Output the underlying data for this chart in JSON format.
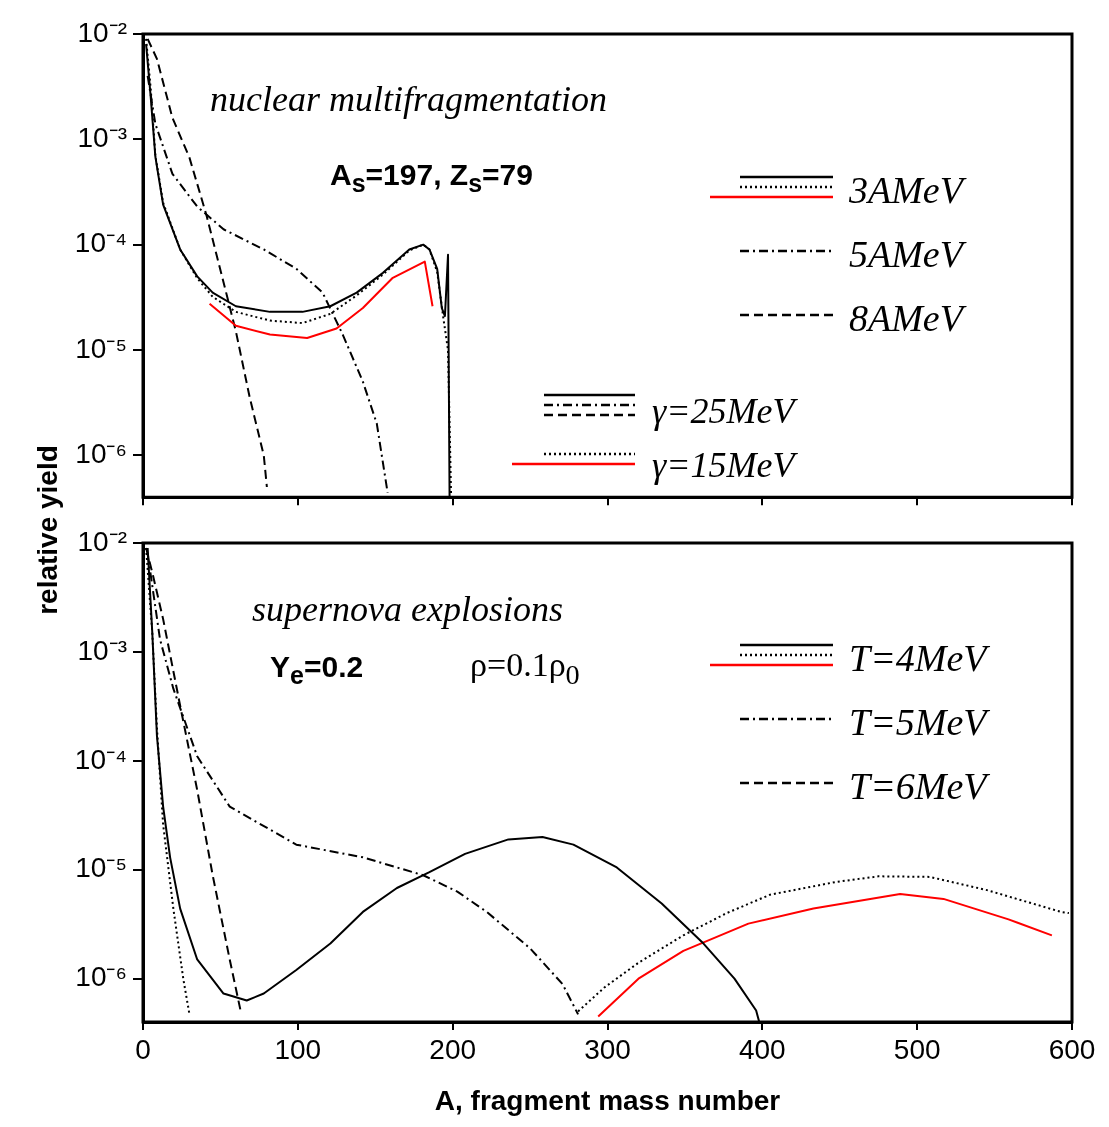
{
  "chart_data": [
    {
      "type": "line",
      "ylabel": "relative yield",
      "log": "y",
      "marker": "none",
      "legend": "top right",
      "tick_labels": "y",
      "xlim": [
        0,
        600
      ],
      "xticks": [
        0,
        100,
        200,
        300,
        400,
        500,
        600
      ],
      "ylim": [
        4e-07,
        0.01
      ],
      "yticks": [
        {
          "value": 0.01,
          "label": "10⁻²"
        },
        {
          "value": 0.001,
          "label": "10⁻³"
        },
        {
          "value": 0.0001,
          "label": "10⁻⁴"
        },
        {
          "value": 1e-05,
          "label": "10⁻⁵"
        },
        {
          "value": 1e-06,
          "label": "10⁻⁶"
        }
      ],
      "annotations": [
        "nuclear multifragmentation",
        "A$_{s}$=197, Z$_{s}$=79",
        "γ=25MeV",
        "γ=15MeV"
      ],
      "series": [
        {
          "name": "3AMeV",
          "color": "#000000",
          "line_style": "solid",
          "x": [
            2,
            5,
            8,
            13,
            24,
            35,
            45,
            60,
            82,
            103,
            121,
            138,
            155,
            172,
            181,
            185,
            190,
            193,
            195,
            197,
            198
          ],
          "values": [
            0.008,
            0.0025,
            0.00068,
            0.00024,
            9e-05,
            5e-05,
            3.5e-05,
            2.6e-05,
            2.3e-05,
            2.3e-05,
            2.6e-05,
            3.5e-05,
            5.4e-05,
            9e-05,
            0.0001,
            9e-05,
            5.9e-05,
            2.5e-05,
            2.1e-05,
            8e-05,
            4e-07
          ]
        },
        {
          "color": "#000000",
          "line_style": "dotted",
          "x": [
            2,
            5,
            8,
            13,
            24,
            35,
            45,
            60,
            82,
            103,
            121,
            138,
            155,
            172,
            181,
            185,
            190,
            194,
            197,
            199
          ],
          "values": [
            0.009,
            0.003,
            0.0007,
            0.00025,
            9e-05,
            4.8e-05,
            3.2e-05,
            2.3e-05,
            1.9e-05,
            1.8e-05,
            2.2e-05,
            3.3e-05,
            5.2e-05,
            8.8e-05,
            0.0001,
            9e-05,
            5.5e-05,
            2e-05,
            1e-05,
            4e-07
          ]
        },
        {
          "color": "#ff0000",
          "line_style": "solid",
          "x": [
            43,
            60,
            82,
            106,
            125,
            142,
            161,
            182,
            187
          ],
          "values": [
            2.75e-05,
            1.7e-05,
            1.4e-05,
            1.3e-05,
            1.6e-05,
            2.5e-05,
            4.8e-05,
            6.9e-05,
            2.6e-05
          ]
        },
        {
          "name": "5AMeV",
          "color": "#000000",
          "line_style": "dashdot",
          "x": [
            3,
            8,
            19,
            35,
            52,
            78,
            99,
            116,
            129,
            142,
            151,
            158
          ],
          "values": [
            0.004,
            0.0014,
            0.00047,
            0.00023,
            0.00014,
            9e-05,
            5.9e-05,
            3.5e-05,
            1.4e-05,
            5e-06,
            2e-06,
            4.4e-07
          ]
        },
        {
          "name": "8AMeV",
          "color": "#000000",
          "line_style": "dashed",
          "x": [
            3,
            9,
            19,
            30,
            41,
            52,
            60,
            69,
            78,
            80
          ],
          "values": [
            0.009,
            0.0058,
            0.0016,
            0.00067,
            0.00019,
            4.4e-05,
            1.5e-05,
            3.5e-06,
            1e-06,
            5e-07
          ]
        }
      ]
    },
    {
      "type": "line",
      "xlabel": "A, fragment mass number",
      "log": "y",
      "marker": "none",
      "legend": "top right",
      "xlim": [
        0,
        600
      ],
      "xticks": [
        0,
        100,
        200,
        300,
        400,
        500,
        600
      ],
      "ylim": [
        4e-07,
        0.01
      ],
      "yticks": [
        {
          "value": 0.01,
          "label": "10⁻²"
        },
        {
          "value": 0.001,
          "label": "10⁻³"
        },
        {
          "value": 0.0001,
          "label": "10⁻⁴"
        },
        {
          "value": 1e-05,
          "label": "10⁻⁵"
        },
        {
          "value": 1e-06,
          "label": "10⁻⁶"
        }
      ],
      "annotations": [
        "supernova explosions",
        "Y$_{e}$=0.2",
        "ρ=0.1ρ$_{0}$"
      ],
      "series": [
        {
          "name": "T=4MeV",
          "color": "#000000",
          "line_style": "solid",
          "x": [
            3,
            6,
            9,
            13,
            17.5,
            24,
            35,
            52,
            67,
            78,
            99,
            121,
            142,
            164,
            185,
            208,
            236,
            258,
            278,
            306,
            335,
            362,
            382,
            396,
            398
          ],
          "values": [
            0.009,
            0.0015,
            0.00017,
            3.8e-05,
            1.3e-05,
            4.4e-06,
            1.5e-06,
            7.3e-07,
            6.3e-07,
            7.3e-07,
            1.2e-06,
            2.1e-06,
            4.1e-06,
            6.8e-06,
            9.5e-06,
            1.4e-05,
            1.9e-05,
            2e-05,
            1.7e-05,
            1.05e-05,
            4.9e-06,
            2.1e-06,
            1e-06,
            5.1e-07,
            4e-07
          ]
        },
        {
          "color": "#000000",
          "line_style": "dotted",
          "x": [
            2,
            6,
            9,
            13,
            19.6,
            26,
            30,
            150,
            281,
            298,
            320,
            349,
            377,
            405,
            447,
            475,
            508,
            545,
            593,
            598
          ],
          "values": [
            0.009,
            0.0015,
            0.0002,
            2.6e-05,
            4.4e-06,
            1e-06,
            4.7e-07,
            null,
            5e-07,
            8.3e-07,
            1.4e-06,
            2.5e-06,
            4e-06,
            5.9e-06,
            7.7e-06,
            8.7e-06,
            8.6e-06,
            6.5e-06,
            4.1e-06,
            4e-06
          ]
        },
        {
          "color": "#ff0000",
          "line_style": "solid",
          "x": [
            294,
            320,
            349,
            391,
            433,
            489,
            517,
            559,
            587
          ],
          "values": [
            4.5e-07,
            1e-06,
            1.8e-06,
            3.2e-06,
            4.4e-06,
            6e-06,
            5.4e-06,
            3.5e-06,
            2.5e-06
          ]
        },
        {
          "name": "T=5MeV",
          "color": "#000000",
          "line_style": "dashdot",
          "x": [
            3,
            11,
            19.6,
            35,
            56,
            99,
            142,
            181,
            203,
            222,
            250,
            271,
            281
          ],
          "values": [
            0.008,
            0.0013,
            0.00046,
            0.00011,
            3.8e-05,
            1.7e-05,
            1.3e-05,
            8.9e-06,
            6.3e-06,
            4.1e-06,
            1.9e-06,
            8.9e-07,
            4.7e-07
          ]
        },
        {
          "name": "T=6MeV",
          "color": "#000000",
          "line_style": "dashed",
          "x": [
            2,
            6.5,
            13,
            24,
            35,
            45,
            56,
            63
          ],
          "values": [
            0.009,
            0.005,
            0.002,
            0.00032,
            5.4e-05,
            8.9e-06,
            1.5e-06,
            5.1e-07
          ]
        }
      ]
    }
  ]
}
